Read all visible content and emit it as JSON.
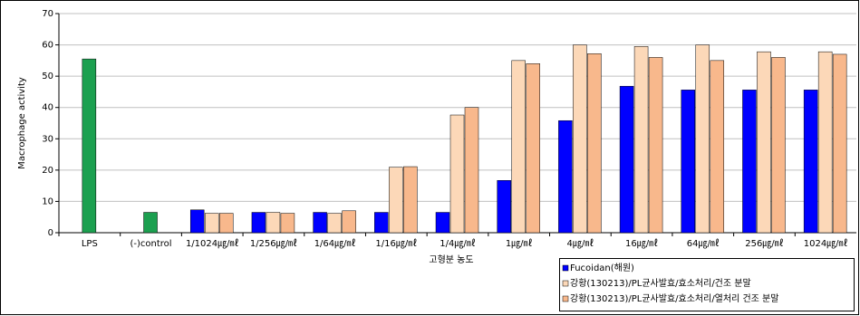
{
  "chart_data": {
    "type": "bar",
    "y_label": "Macrophage activity",
    "x_label": "고형분 농도",
    "categories": [
      "LPS",
      "(-)control",
      "1/1024㎍/㎖",
      "1/256㎍/㎖",
      "1/64㎍/㎖",
      "1/16㎍/㎖",
      "1/4㎍/㎖",
      "1㎍/㎖",
      "4㎍/㎖",
      "16㎍/㎖",
      "64㎍/㎖",
      "256㎍/㎖",
      "1024㎍/㎖"
    ],
    "series": [
      {
        "color": "#1ca050",
        "values": [
          55.5,
          6.5,
          null,
          null,
          null,
          null,
          null,
          null,
          null,
          null,
          null,
          null,
          null
        ]
      },
      {
        "name": "Fucoidan(해원)",
        "color": "#0000ff",
        "values": [
          null,
          null,
          7.3,
          6.5,
          6.5,
          6.5,
          6.5,
          16.7,
          35.8,
          46.8,
          45.6,
          45.6,
          45.6
        ]
      },
      {
        "name": "강황(130213)/PL균사발효/효소처리/건조 분말",
        "color": "#fcd8b8",
        "values": [
          null,
          null,
          6.2,
          6.5,
          6.2,
          20.9,
          37.6,
          55.0,
          60.0,
          59.5,
          60.0,
          57.8,
          57.8
        ]
      },
      {
        "name": "강황(130213)/PL균사발효/효소처리/열처리 건조 분말",
        "color": "#f8b88c",
        "values": [
          null,
          null,
          6.2,
          6.2,
          7.0,
          21.1,
          40.0,
          54.0,
          57.2,
          56.0,
          55.0,
          56.0,
          57.0
        ]
      }
    ],
    "ylim": [
      0,
      70
    ],
    "yticks": [
      0,
      10,
      20,
      30,
      40,
      50,
      60,
      70
    ],
    "grid": true
  }
}
